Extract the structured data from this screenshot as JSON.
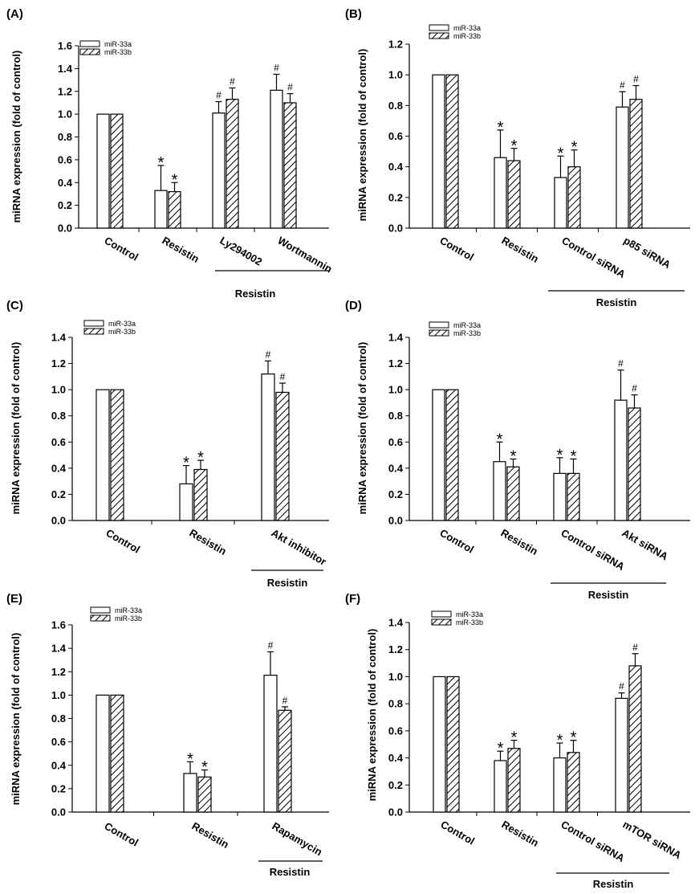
{
  "figure": {
    "series_names": [
      "miR-33a",
      "miR-33b"
    ],
    "ylabel": "miRNA expression (fold of control)",
    "group_label": "Resistin"
  },
  "chart_data": [
    {
      "panel": "(A)",
      "type": "bar",
      "categories": [
        "Control",
        "Resistin",
        "Ly294002",
        "Wortmannin"
      ],
      "series": [
        {
          "name": "miR-33a",
          "values": [
            1.0,
            0.33,
            1.01,
            1.21
          ],
          "errors": [
            0,
            0.22,
            0.1,
            0.14
          ],
          "marks": [
            "",
            "*",
            "#",
            "#"
          ]
        },
        {
          "name": "miR-33b",
          "values": [
            1.0,
            0.32,
            1.13,
            1.1
          ],
          "errors": [
            0,
            0.08,
            0.1,
            0.08
          ],
          "marks": [
            "",
            "*",
            "#",
            "#"
          ]
        }
      ],
      "ylabel": "miRNA expression (fold of control)",
      "ylim": [
        0,
        1.6
      ],
      "yticks": [
        "0.0",
        "0.2",
        "0.4",
        "0.6",
        "0.8",
        "1.0",
        "1.2",
        "1.4",
        "1.6"
      ],
      "group_label": "Resistin",
      "group_start": 2,
      "legend": [
        "miR-33a",
        "miR-33b"
      ]
    },
    {
      "panel": "(B)",
      "type": "bar",
      "categories": [
        "Control",
        "Resistin",
        "Control siRNA",
        "p85 siRNA"
      ],
      "series": [
        {
          "name": "miR-33a",
          "values": [
            1.0,
            0.46,
            0.33,
            0.79
          ],
          "errors": [
            0,
            0.18,
            0.14,
            0.1
          ],
          "marks": [
            "",
            "*",
            "*",
            "#"
          ]
        },
        {
          "name": "miR-33b",
          "values": [
            1.0,
            0.44,
            0.4,
            0.84
          ],
          "errors": [
            0,
            0.08,
            0.11,
            0.09
          ],
          "marks": [
            "",
            "*",
            "*",
            "#"
          ]
        }
      ],
      "ylabel": "miRNA expression (fold of control)",
      "ylim": [
        0,
        1.2
      ],
      "yticks": [
        "0.0",
        "0.2",
        "0.4",
        "0.6",
        "0.8",
        "1.0",
        "1.2"
      ],
      "group_label": "Resistin",
      "group_start": 2,
      "legend": [
        "miR-33a",
        "miR-33b"
      ]
    },
    {
      "panel": "(C)",
      "type": "bar",
      "categories": [
        "Control",
        "Resistin",
        "Akt inhibitor"
      ],
      "series": [
        {
          "name": "miR-33a",
          "values": [
            1.0,
            0.28,
            1.12
          ],
          "errors": [
            0,
            0.14,
            0.1
          ],
          "marks": [
            "",
            "*",
            "#"
          ]
        },
        {
          "name": "miR-33b",
          "values": [
            1.0,
            0.39,
            0.98
          ],
          "errors": [
            0,
            0.07,
            0.07
          ],
          "marks": [
            "",
            "*",
            "#"
          ]
        }
      ],
      "ylabel": "miRNA expression (fold of control)",
      "ylim": [
        0,
        1.4
      ],
      "yticks": [
        "0.0",
        "0.2",
        "0.4",
        "0.6",
        "0.8",
        "1.0",
        "1.2",
        "1.4"
      ],
      "group_label": "Resistin",
      "group_start": 2,
      "legend": [
        "miR-33a",
        "miR-33b"
      ]
    },
    {
      "panel": "(D)",
      "type": "bar",
      "categories": [
        "Control",
        "Resistin",
        "Control siRNA",
        "Akt siRNA"
      ],
      "series": [
        {
          "name": "miR-33a",
          "values": [
            1.0,
            0.45,
            0.36,
            0.92
          ],
          "errors": [
            0,
            0.15,
            0.12,
            0.23
          ],
          "marks": [
            "",
            "*",
            "*",
            "#"
          ]
        },
        {
          "name": "miR-33b",
          "values": [
            1.0,
            0.41,
            0.36,
            0.86
          ],
          "errors": [
            0,
            0.06,
            0.11,
            0.1
          ],
          "marks": [
            "",
            "*",
            "*",
            "#"
          ]
        }
      ],
      "ylabel": "miRNA expression (fold of control)",
      "ylim": [
        0,
        1.4
      ],
      "yticks": [
        "0.0",
        "0.2",
        "0.4",
        "0.6",
        "0.8",
        "1.0",
        "1.2",
        "1.4"
      ],
      "group_label": "Resistin",
      "group_start": 2,
      "legend": [
        "miR-33a",
        "miR-33b"
      ]
    },
    {
      "panel": "(E)",
      "type": "bar",
      "categories": [
        "Control",
        "Resistin",
        "Rapamycin"
      ],
      "series": [
        {
          "name": "miR-33a",
          "values": [
            1.0,
            0.33,
            1.17
          ],
          "errors": [
            0,
            0.1,
            0.2
          ],
          "marks": [
            "",
            "*",
            "#"
          ]
        },
        {
          "name": "miR-33b",
          "values": [
            1.0,
            0.3,
            0.87
          ],
          "errors": [
            0,
            0.06,
            0.03
          ],
          "marks": [
            "",
            "*",
            "#"
          ]
        }
      ],
      "ylabel": "miRNA expression (fold of control)",
      "ylim": [
        0,
        1.6
      ],
      "yticks": [
        "0.0",
        "0.2",
        "0.4",
        "0.6",
        "0.8",
        "1.0",
        "1.2",
        "1.4",
        "1.6"
      ],
      "group_label": "Resistin",
      "group_start": 2,
      "legend": [
        "miR-33a",
        "miR-33b"
      ]
    },
    {
      "panel": "(F)",
      "type": "bar",
      "categories": [
        "Control",
        "Resistin",
        "Control siRNA",
        "mTOR siRNA"
      ],
      "series": [
        {
          "name": "miR-33a",
          "values": [
            1.0,
            0.38,
            0.4,
            0.84
          ],
          "errors": [
            0,
            0.07,
            0.11,
            0.04
          ],
          "marks": [
            "",
            "*",
            "*",
            "#"
          ]
        },
        {
          "name": "miR-33b",
          "values": [
            1.0,
            0.47,
            0.44,
            1.08
          ],
          "errors": [
            0,
            0.06,
            0.09,
            0.09
          ],
          "marks": [
            "",
            "*",
            "*",
            "#"
          ]
        }
      ],
      "ylabel": "miRNA expression (fold of control)",
      "ylim": [
        0,
        1.4
      ],
      "yticks": [
        "0.0",
        "0.2",
        "0.4",
        "0.6",
        "0.8",
        "1.0",
        "1.2",
        "1.4"
      ],
      "group_label": "Resistin",
      "group_start": 2,
      "legend": [
        "miR-33a",
        "miR-33b"
      ]
    }
  ]
}
